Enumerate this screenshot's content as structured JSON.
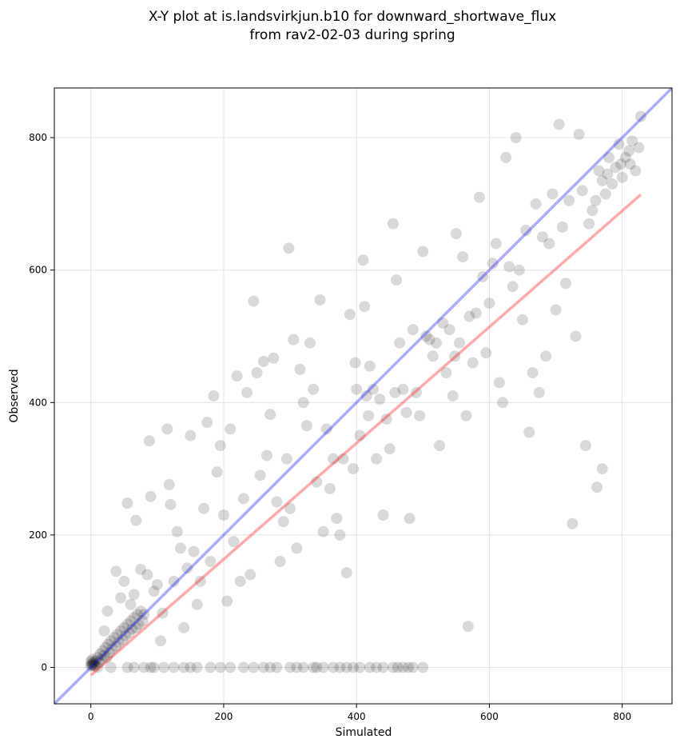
{
  "chart_data": {
    "type": "scatter",
    "title": [
      "X-Y plot at is.landsvirkjun.b10 for downward_shortwave_flux",
      "from rav2-02-03 during spring"
    ],
    "xlabel": "Simulated",
    "ylabel": "Observed",
    "xlim": [
      -55,
      875
    ],
    "ylim": [
      -55,
      875
    ],
    "xticks": [
      0,
      200,
      400,
      600,
      800
    ],
    "yticks": [
      0,
      200,
      400,
      600,
      800
    ],
    "grid": true,
    "colors": {
      "points": "#000000",
      "one_to_one": "#0000ff",
      "fit": "#ff0000"
    },
    "reference_lines": [
      {
        "kind": "one-to-one",
        "color": "#0000ff",
        "x": [
          -55,
          875
        ],
        "y": [
          -55,
          875
        ]
      },
      {
        "kind": "fit",
        "color": "#ff0000",
        "x": [
          0,
          828
        ],
        "y": [
          -12,
          714
        ]
      }
    ],
    "series": [
      {
        "points": [
          [
            0,
            2
          ],
          [
            1,
            4
          ],
          [
            2,
            6
          ],
          [
            3,
            3
          ],
          [
            4,
            8
          ],
          [
            5,
            5
          ],
          [
            0,
            9
          ],
          [
            6,
            2
          ],
          [
            2,
            12
          ],
          [
            8,
            10
          ],
          [
            10,
            15
          ],
          [
            12,
            8
          ],
          [
            14,
            20
          ],
          [
            16,
            12
          ],
          [
            18,
            25
          ],
          [
            20,
            18
          ],
          [
            22,
            30
          ],
          [
            24,
            15
          ],
          [
            26,
            35
          ],
          [
            28,
            22
          ],
          [
            30,
            40
          ],
          [
            32,
            28
          ],
          [
            35,
            45
          ],
          [
            38,
            32
          ],
          [
            40,
            50
          ],
          [
            42,
            38
          ],
          [
            45,
            55
          ],
          [
            48,
            42
          ],
          [
            50,
            60
          ],
          [
            52,
            48
          ],
          [
            55,
            65
          ],
          [
            58,
            52
          ],
          [
            60,
            70
          ],
          [
            62,
            58
          ],
          [
            65,
            75
          ],
          [
            68,
            60
          ],
          [
            70,
            80
          ],
          [
            72,
            65
          ],
          [
            75,
            85
          ],
          [
            78,
            70
          ],
          [
            20,
            55
          ],
          [
            25,
            85
          ],
          [
            38,
            145
          ],
          [
            45,
            105
          ],
          [
            50,
            130
          ],
          [
            55,
            248
          ],
          [
            60,
            95
          ],
          [
            65,
            110
          ],
          [
            68,
            222
          ],
          [
            75,
            148
          ],
          [
            80,
            80
          ],
          [
            85,
            140
          ],
          [
            88,
            342
          ],
          [
            90,
            258
          ],
          [
            95,
            115
          ],
          [
            100,
            125
          ],
          [
            105,
            40
          ],
          [
            108,
            82
          ],
          [
            115,
            360
          ],
          [
            118,
            276
          ],
          [
            120,
            246
          ],
          [
            125,
            130
          ],
          [
            130,
            205
          ],
          [
            135,
            180
          ],
          [
            140,
            60
          ],
          [
            145,
            150
          ],
          [
            150,
            350
          ],
          [
            155,
            175
          ],
          [
            160,
            95
          ],
          [
            165,
            130
          ],
          [
            170,
            240
          ],
          [
            175,
            370
          ],
          [
            180,
            160
          ],
          [
            185,
            410
          ],
          [
            190,
            295
          ],
          [
            195,
            335
          ],
          [
            200,
            230
          ],
          [
            205,
            100
          ],
          [
            210,
            360
          ],
          [
            215,
            190
          ],
          [
            220,
            440
          ],
          [
            225,
            130
          ],
          [
            230,
            255
          ],
          [
            235,
            415
          ],
          [
            240,
            140
          ],
          [
            245,
            553
          ],
          [
            250,
            445
          ],
          [
            255,
            290
          ],
          [
            260,
            462
          ],
          [
            265,
            320
          ],
          [
            270,
            382
          ],
          [
            275,
            467
          ],
          [
            280,
            250
          ],
          [
            285,
            160
          ],
          [
            290,
            220
          ],
          [
            295,
            315
          ],
          [
            298,
            633
          ],
          [
            300,
            240
          ],
          [
            305,
            495
          ],
          [
            310,
            180
          ],
          [
            315,
            450
          ],
          [
            320,
            400
          ],
          [
            325,
            365
          ],
          [
            330,
            490
          ],
          [
            335,
            420
          ],
          [
            340,
            280
          ],
          [
            345,
            555
          ],
          [
            350,
            205
          ],
          [
            355,
            360
          ],
          [
            360,
            270
          ],
          [
            365,
            315
          ],
          [
            370,
            225
          ],
          [
            375,
            200
          ],
          [
            380,
            315
          ],
          [
            385,
            143
          ],
          [
            390,
            533
          ],
          [
            395,
            300
          ],
          [
            398,
            460
          ],
          [
            400,
            420
          ],
          [
            405,
            350
          ],
          [
            410,
            615
          ],
          [
            412,
            545
          ],
          [
            415,
            410
          ],
          [
            418,
            380
          ],
          [
            420,
            455
          ],
          [
            425,
            420
          ],
          [
            430,
            315
          ],
          [
            435,
            405
          ],
          [
            440,
            230
          ],
          [
            445,
            375
          ],
          [
            450,
            330
          ],
          [
            455,
            670
          ],
          [
            458,
            415
          ],
          [
            460,
            585
          ],
          [
            465,
            490
          ],
          [
            470,
            420
          ],
          [
            475,
            385
          ],
          [
            480,
            225
          ],
          [
            485,
            510
          ],
          [
            490,
            415
          ],
          [
            495,
            380
          ],
          [
            500,
            628
          ],
          [
            505,
            500
          ],
          [
            510,
            495
          ],
          [
            515,
            470
          ],
          [
            520,
            490
          ],
          [
            525,
            335
          ],
          [
            530,
            520
          ],
          [
            535,
            445
          ],
          [
            540,
            510
          ],
          [
            545,
            410
          ],
          [
            548,
            470
          ],
          [
            550,
            655
          ],
          [
            555,
            490
          ],
          [
            560,
            620
          ],
          [
            565,
            380
          ],
          [
            568,
            62
          ],
          [
            570,
            530
          ],
          [
            575,
            460
          ],
          [
            580,
            535
          ],
          [
            585,
            710
          ],
          [
            590,
            590
          ],
          [
            595,
            475
          ],
          [
            600,
            550
          ],
          [
            605,
            610
          ],
          [
            610,
            640
          ],
          [
            615,
            430
          ],
          [
            620,
            400
          ],
          [
            625,
            770
          ],
          [
            630,
            605
          ],
          [
            635,
            575
          ],
          [
            640,
            800
          ],
          [
            645,
            600
          ],
          [
            650,
            525
          ],
          [
            655,
            660
          ],
          [
            660,
            355
          ],
          [
            665,
            445
          ],
          [
            670,
            700
          ],
          [
            675,
            415
          ],
          [
            680,
            650
          ],
          [
            685,
            470
          ],
          [
            690,
            640
          ],
          [
            695,
            715
          ],
          [
            700,
            540
          ],
          [
            705,
            820
          ],
          [
            710,
            665
          ],
          [
            715,
            580
          ],
          [
            720,
            705
          ],
          [
            725,
            217
          ],
          [
            730,
            500
          ],
          [
            735,
            805
          ],
          [
            740,
            720
          ],
          [
            745,
            335
          ],
          [
            750,
            670
          ],
          [
            755,
            690
          ],
          [
            760,
            705
          ],
          [
            762,
            272
          ],
          [
            765,
            750
          ],
          [
            770,
            300
          ],
          [
            775,
            715
          ],
          [
            780,
            770
          ],
          [
            785,
            730
          ],
          [
            790,
            755
          ],
          [
            795,
            790
          ],
          [
            800,
            740
          ],
          [
            805,
            770
          ],
          [
            810,
            780
          ],
          [
            815,
            795
          ],
          [
            820,
            750
          ],
          [
            825,
            785
          ],
          [
            828,
            832
          ],
          [
            812,
            760
          ],
          [
            798,
            760
          ],
          [
            778,
            745
          ],
          [
            770,
            735
          ],
          [
            10,
            0
          ],
          [
            30,
            0
          ],
          [
            55,
            0
          ],
          [
            65,
            0
          ],
          [
            80,
            0
          ],
          [
            95,
            0
          ],
          [
            110,
            0
          ],
          [
            125,
            0
          ],
          [
            140,
            0
          ],
          [
            160,
            0
          ],
          [
            180,
            0
          ],
          [
            195,
            0
          ],
          [
            210,
            0
          ],
          [
            230,
            0
          ],
          [
            245,
            0
          ],
          [
            260,
            0
          ],
          [
            280,
            0
          ],
          [
            300,
            0
          ],
          [
            320,
            0
          ],
          [
            335,
            0
          ],
          [
            350,
            0
          ],
          [
            365,
            0
          ],
          [
            385,
            0
          ],
          [
            405,
            0
          ],
          [
            420,
            0
          ],
          [
            440,
            0
          ],
          [
            455,
            0
          ],
          [
            470,
            0
          ],
          [
            485,
            0
          ],
          [
            500,
            0
          ],
          [
            90,
            0
          ],
          [
            150,
            0
          ],
          [
            270,
            0
          ],
          [
            310,
            0
          ],
          [
            375,
            0
          ],
          [
            395,
            0
          ],
          [
            430,
            0
          ],
          [
            462,
            0
          ],
          [
            478,
            0
          ],
          [
            340,
            0
          ]
        ]
      }
    ]
  }
}
